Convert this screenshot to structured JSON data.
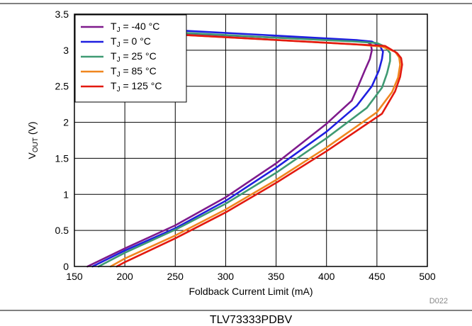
{
  "chart_data": {
    "type": "line",
    "xlabel": "Foldback Current Limit (mA)",
    "ylabel_main": "V",
    "ylabel_sub": "OUT",
    "ylabel_unit": " (V)",
    "xlim": [
      150,
      500
    ],
    "ylim": [
      0,
      3.5
    ],
    "xticks": [
      "150",
      "200",
      "250",
      "300",
      "350",
      "400",
      "450",
      "500"
    ],
    "yticks": [
      "0",
      "0.5",
      "1",
      "1.5",
      "2",
      "2.5",
      "3",
      "3.5"
    ],
    "grid": true,
    "legend_position": "top-left",
    "figure_id": "D022",
    "caption": "TLV73333PDBV",
    "series": [
      {
        "label_main": "T",
        "label_sub": "J",
        "label_rest": " = -40 °C",
        "color": "#7f1a8c",
        "x": [
          163,
          200,
          250,
          300,
          350,
          400,
          425,
          432,
          438,
          443,
          445,
          444,
          440,
          430,
          340,
          260
        ],
        "y": [
          0.0,
          0.25,
          0.57,
          0.96,
          1.43,
          1.98,
          2.3,
          2.52,
          2.72,
          2.88,
          3.0,
          3.08,
          3.12,
          3.13,
          3.18,
          3.23
        ]
      },
      {
        "label_main": "T",
        "label_sub": "J",
        "label_rest": " = 0 °C",
        "color": "#1f1fe0",
        "x": [
          168,
          200,
          250,
          300,
          350,
          400,
          430,
          445,
          452,
          455,
          456,
          453,
          445,
          430,
          340,
          260
        ],
        "y": [
          0.0,
          0.22,
          0.53,
          0.91,
          1.37,
          1.87,
          2.23,
          2.5,
          2.72,
          2.88,
          2.98,
          3.06,
          3.12,
          3.14,
          3.21,
          3.27
        ]
      },
      {
        "label_main": "T",
        "label_sub": "J",
        "label_rest": " = 25 °C",
        "color": "#3f9a73",
        "x": [
          174,
          200,
          250,
          300,
          350,
          400,
          440,
          455,
          460,
          463,
          463,
          458,
          450,
          430,
          340,
          260
        ],
        "y": [
          0.0,
          0.19,
          0.51,
          0.87,
          1.3,
          1.78,
          2.2,
          2.48,
          2.68,
          2.85,
          2.96,
          3.05,
          3.1,
          3.12,
          3.18,
          3.24
        ]
      },
      {
        "label_main": "T",
        "label_sub": "J",
        "label_rest": " = 85 °C",
        "color": "#f0861f",
        "x": [
          186,
          200,
          250,
          300,
          350,
          400,
          450,
          465,
          471,
          473,
          472,
          468,
          455,
          430,
          340,
          260
        ],
        "y": [
          0.0,
          0.11,
          0.43,
          0.79,
          1.2,
          1.65,
          2.14,
          2.42,
          2.62,
          2.8,
          2.9,
          2.98,
          3.05,
          3.08,
          3.15,
          3.21
        ]
      },
      {
        "label_main": "T",
        "label_sub": "J",
        "label_rest": " = 125 °C",
        "color": "#e3190f",
        "x": [
          192,
          200,
          250,
          300,
          350,
          400,
          455,
          468,
          473,
          475,
          474,
          470,
          458,
          430,
          340,
          260
        ],
        "y": [
          0.0,
          0.06,
          0.39,
          0.75,
          1.16,
          1.6,
          2.12,
          2.43,
          2.63,
          2.8,
          2.89,
          2.96,
          3.06,
          3.08,
          3.15,
          3.21
        ]
      }
    ]
  }
}
